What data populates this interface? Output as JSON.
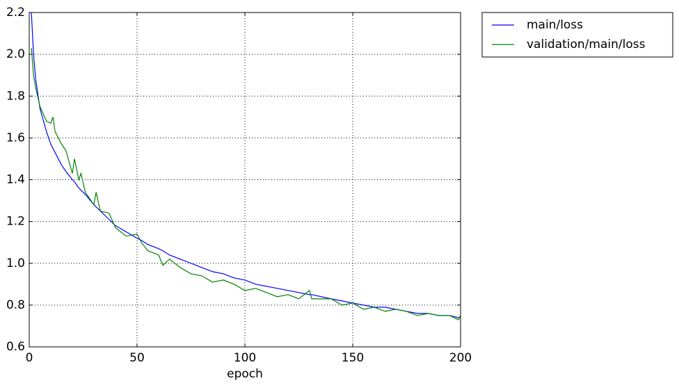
{
  "chart_data": {
    "type": "line",
    "xlabel": "epoch",
    "x": [
      1,
      2,
      3,
      5,
      8,
      10,
      11,
      12,
      15,
      17,
      20,
      21,
      23,
      24,
      26,
      30,
      31,
      33,
      37,
      40,
      45,
      50,
      52,
      55,
      60,
      62,
      65,
      70,
      75,
      80,
      85,
      90,
      95,
      100,
      105,
      110,
      115,
      120,
      125,
      130,
      131,
      140,
      145,
      150,
      155,
      160,
      165,
      170,
      175,
      180,
      185,
      190,
      195,
      199,
      200
    ],
    "series": [
      {
        "name": "main/loss",
        "color": "#0000ff",
        "values": [
          2.2,
          2.0,
          1.88,
          1.74,
          1.63,
          1.57,
          1.55,
          1.53,
          1.47,
          1.44,
          1.4,
          1.39,
          1.36,
          1.35,
          1.33,
          1.28,
          1.27,
          1.25,
          1.21,
          1.18,
          1.15,
          1.12,
          1.11,
          1.09,
          1.07,
          1.06,
          1.04,
          1.02,
          1.0,
          0.98,
          0.96,
          0.95,
          0.93,
          0.92,
          0.9,
          0.89,
          0.88,
          0.87,
          0.86,
          0.85,
          0.85,
          0.83,
          0.82,
          0.81,
          0.8,
          0.79,
          0.79,
          0.78,
          0.77,
          0.76,
          0.76,
          0.75,
          0.75,
          0.74,
          0.74
        ]
      },
      {
        "name": "validation/main/loss",
        "color": "#008000",
        "values": [
          2.03,
          1.9,
          1.84,
          1.75,
          1.68,
          1.67,
          1.7,
          1.63,
          1.57,
          1.54,
          1.43,
          1.5,
          1.4,
          1.43,
          1.34,
          1.28,
          1.34,
          1.25,
          1.24,
          1.17,
          1.13,
          1.14,
          1.1,
          1.06,
          1.04,
          0.99,
          1.02,
          0.98,
          0.95,
          0.94,
          0.91,
          0.92,
          0.9,
          0.87,
          0.88,
          0.86,
          0.84,
          0.85,
          0.83,
          0.87,
          0.83,
          0.83,
          0.8,
          0.81,
          0.78,
          0.79,
          0.77,
          0.78,
          0.77,
          0.75,
          0.76,
          0.75,
          0.75,
          0.73,
          0.75
        ]
      }
    ],
    "xlim": [
      0,
      200
    ],
    "xticks": [
      0,
      50,
      100,
      150,
      200
    ],
    "ylim": [
      0.6,
      2.2
    ],
    "yticks": [
      0.6,
      0.8,
      {
        "value": 1,
        "label": "1.0"
      },
      1.2,
      1.4,
      1.6,
      1.8,
      {
        "value": 2,
        "label": "2.0"
      },
      2.2
    ],
    "grid": true,
    "legend": "outside-upper-right"
  }
}
